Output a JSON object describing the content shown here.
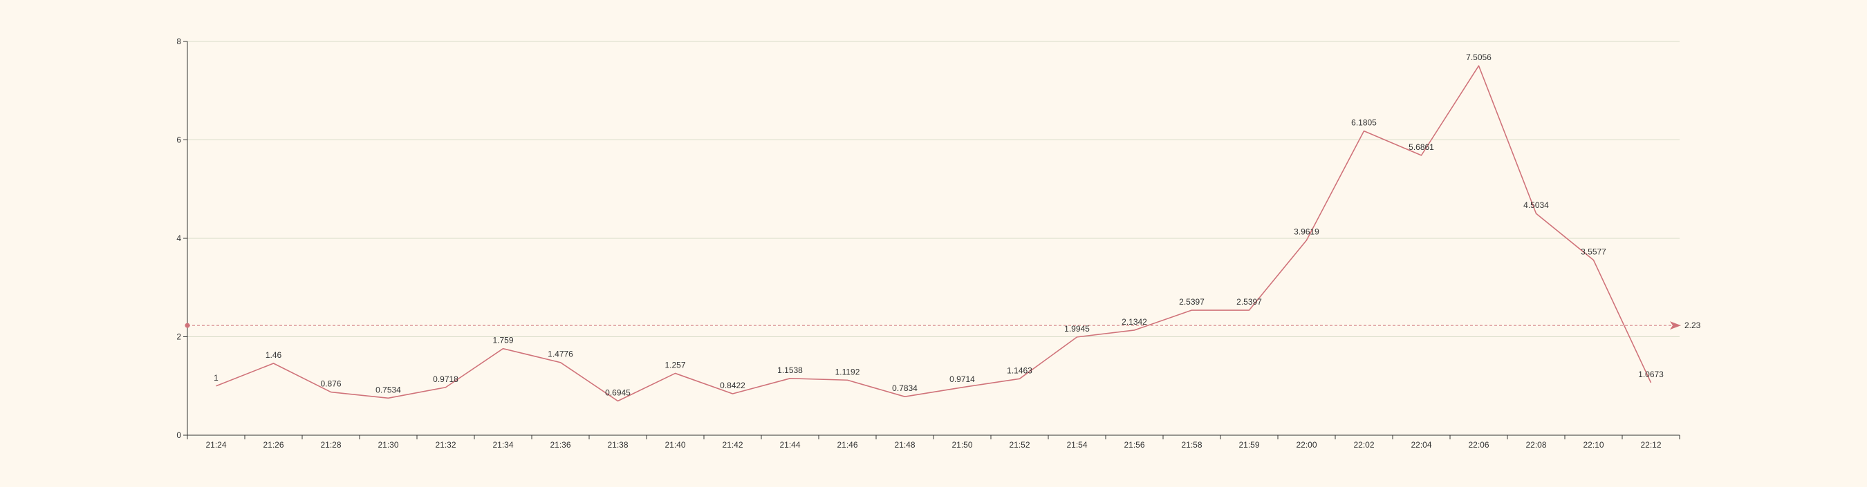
{
  "chart_data": {
    "type": "line",
    "categories": [
      "21:24",
      "21:26",
      "21:28",
      "21:30",
      "21:32",
      "21:34",
      "21:36",
      "21:38",
      "21:40",
      "21:42",
      "21:44",
      "21:46",
      "21:48",
      "21:50",
      "21:52",
      "21:54",
      "21:56",
      "21:58",
      "21:59",
      "22:00",
      "22:02",
      "22:04",
      "22:06",
      "22:08",
      "22:10",
      "22:12"
    ],
    "values": [
      1,
      1.46,
      0.876,
      0.7534,
      0.9718,
      1.759,
      1.4776,
      0.6945,
      1.257,
      0.8422,
      1.1538,
      1.1192,
      0.7834,
      0.9714,
      1.1463,
      1.9945,
      2.1342,
      2.5397,
      2.5397,
      3.9619,
      6.1805,
      5.6861,
      7.5056,
      4.5034,
      3.5577,
      1.0673
    ],
    "data_labels": [
      "1",
      "1.46",
      "0.876",
      "0.7534",
      "0.9718",
      "1.759",
      "1.4776",
      "0.6945",
      "1.257",
      "0.8422",
      "1.1538",
      "1.1192",
      "0.7834",
      "0.9714",
      "1.1463",
      "1.9945",
      "2.1342",
      "2.5397",
      "2.5397",
      "3.9619",
      "6.1805",
      "5.6861",
      "7.5056",
      "4.5034",
      "3.5577",
      "1.0673"
    ],
    "ylim": [
      0,
      8
    ],
    "yticks": [
      0,
      2,
      4,
      6,
      8
    ],
    "ytick_labels": [
      "0",
      "2",
      "4",
      "6",
      "8"
    ],
    "grid": true,
    "mark_line": {
      "value": 2.23,
      "label": "2.23"
    },
    "colors": {
      "background": "#fef8ee",
      "series": "#d0737a",
      "grid": "#d8dcc8",
      "axis": "#333333"
    }
  }
}
